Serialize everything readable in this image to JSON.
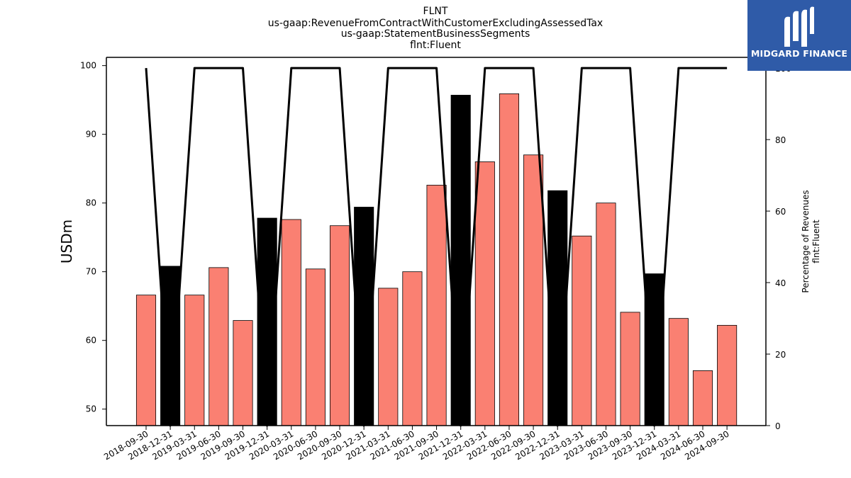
{
  "chart_data": {
    "type": "bar",
    "title_lines": [
      "FLNT",
      "us-gaap:RevenueFromContractWithCustomerExcludingAssessedTax",
      "us-gaap:StatementBusinessSegments",
      "flnt:Fluent"
    ],
    "ylabel": "USDm",
    "y2label_lines": [
      "Percentage of Revenues",
      "flnt:Fluent"
    ],
    "ylim": [
      47.6,
      101.2
    ],
    "y2lim": [
      0,
      103
    ],
    "yticks": [
      50,
      60,
      70,
      80,
      90,
      100
    ],
    "y2ticks": [
      0,
      20,
      40,
      60,
      80,
      100
    ],
    "categories": [
      "2018-09-30",
      "2018-12-31",
      "2019-03-31",
      "2019-06-30",
      "2019-09-30",
      "2019-12-31",
      "2020-03-31",
      "2020-06-30",
      "2020-09-30",
      "2020-12-31",
      "2021-03-31",
      "2021-06-30",
      "2021-09-30",
      "2021-12-31",
      "2022-03-31",
      "2022-06-30",
      "2022-09-30",
      "2022-12-31",
      "2023-03-31",
      "2023-06-30",
      "2023-09-30",
      "2023-12-31",
      "2024-03-31",
      "2024-06-30",
      "2024-09-30"
    ],
    "values": [
      66.6,
      70.8,
      66.6,
      70.6,
      62.9,
      77.8,
      77.6,
      70.4,
      76.7,
      79.4,
      67.6,
      70.0,
      82.6,
      95.7,
      86.0,
      95.9,
      87.0,
      81.8,
      75.2,
      80.0,
      64.1,
      69.7,
      63.2,
      55.6,
      62.2
    ],
    "highlight": [
      false,
      true,
      false,
      false,
      false,
      true,
      false,
      false,
      false,
      true,
      false,
      false,
      false,
      true,
      false,
      false,
      false,
      true,
      false,
      false,
      false,
      true,
      false,
      false,
      false
    ],
    "line_values": [
      100,
      0,
      100,
      100,
      100,
      0,
      100,
      100,
      100,
      0,
      100,
      100,
      100,
      0,
      100,
      100,
      100,
      0,
      100,
      100,
      100,
      0,
      100,
      100,
      100
    ],
    "colors": {
      "bar": "#fa8072",
      "highlight_bar": "#000000",
      "line": "#000000"
    }
  },
  "logo": {
    "text": "MIDGARD FINANCE"
  }
}
